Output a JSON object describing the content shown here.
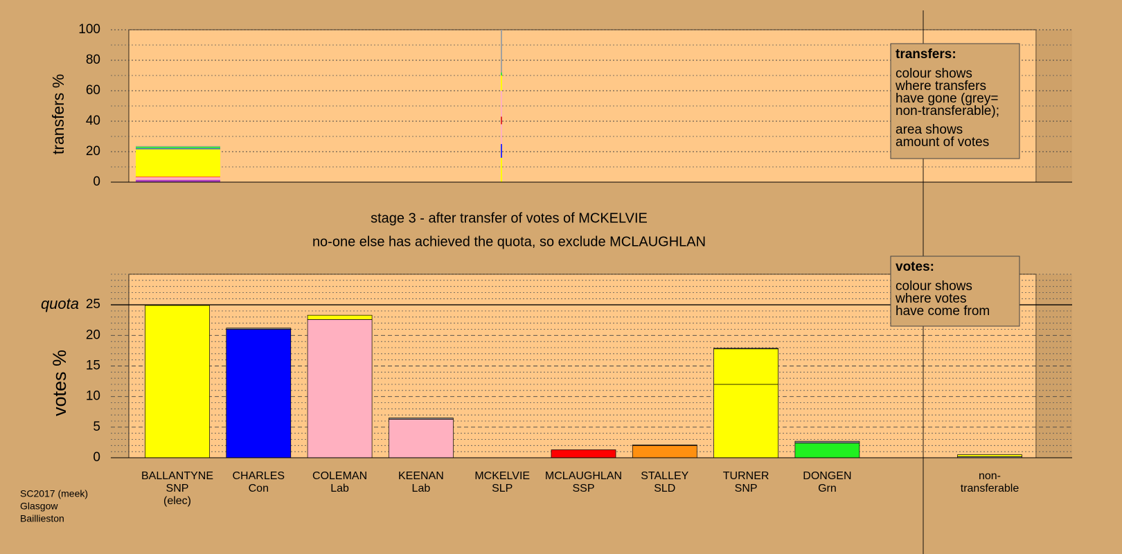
{
  "chart_data": [
    {
      "type": "bar",
      "stacked": true,
      "ylabel": "transfers %",
      "categories": [
        null,
        null
      ],
      "ylim": [
        0,
        100
      ],
      "yticks": [
        0,
        20,
        40,
        60,
        80,
        100
      ],
      "minor_yticks": [
        10,
        30,
        50,
        70,
        90
      ],
      "series": [
        {
          "color": "#b040c0",
          "values": [
            1.5,
            0
          ]
        },
        {
          "color": "#ffb0c0",
          "values": [
            1.8,
            0
          ]
        },
        {
          "color": "#ff0000",
          "values": [
            0.3,
            0
          ]
        },
        {
          "color": "#ffff00",
          "values": [
            18,
            16
          ]
        },
        {
          "color": "#3030ff",
          "values": [
            0.5,
            9
          ]
        },
        {
          "color": "#ffb0c0",
          "values": [
            0,
            13
          ]
        },
        {
          "color": "#e03030",
          "values": [
            0,
            5
          ]
        },
        {
          "color": "#ffb0c0",
          "values": [
            0,
            17
          ]
        },
        {
          "color": "#ffff00",
          "values": [
            0,
            10
          ]
        },
        {
          "color": "#40e040",
          "values": [
            1.2,
            2
          ]
        },
        {
          "color": "#a0a0a0",
          "values": [
            0.4,
            28
          ]
        }
      ]
    },
    {
      "type": "bar",
      "stacked": true,
      "ylabel": "votes %",
      "categories": [
        [
          "BALLANTYNE",
          "SNP",
          "(elec)"
        ],
        [
          "CHARLES",
          "Con"
        ],
        [
          "COLEMAN",
          "Lab"
        ],
        [
          "KEENAN",
          "Lab"
        ],
        [
          "MCKELVIE",
          "SLP"
        ],
        [
          "MCLAUGHLAN",
          "SSP"
        ],
        [
          "STALLEY",
          "SLD"
        ],
        [
          "TURNER",
          "SNP"
        ],
        [
          "DONGEN",
          "Grn"
        ],
        null,
        [
          "non-",
          "transferable"
        ]
      ],
      "ylim": [
        0,
        30
      ],
      "yticks": [
        0,
        5,
        10,
        15,
        20,
        25
      ],
      "minor_yticks": [
        1,
        2,
        3,
        4,
        6,
        7,
        8,
        9,
        11,
        12,
        13,
        14,
        16,
        17,
        18,
        19,
        21,
        22,
        23,
        24,
        26,
        27,
        28,
        29,
        30
      ],
      "quota": 25,
      "quota_label": "quota",
      "series": [
        {
          "colors": [
            "#ffff00",
            "#0000ff",
            "#ffb0c0",
            "#ffb0c0",
            "#808080",
            "#ff0000",
            "#ff9010",
            "#ffff00",
            "#20f020",
            null,
            "#a0a0a0"
          ],
          "values": [
            24.9,
            21.0,
            22.6,
            6.3,
            0,
            1.3,
            2.0,
            12.0,
            2.4,
            null,
            0.2
          ]
        },
        {
          "color": "#ffff00",
          "values": [
            0,
            0,
            0.7,
            0,
            0,
            0,
            0,
            5.8,
            0,
            null,
            0.3
          ]
        },
        {
          "color": "#909090",
          "values": [
            0,
            0.2,
            0,
            0.2,
            0,
            0,
            0.1,
            0.1,
            0.3,
            null,
            0
          ]
        }
      ]
    }
  ],
  "stage_text": [
    "stage 3 - after transfer of votes of MCKELVIE",
    "no-one else has achieved the quota, so exclude MCLAUGHLAN"
  ],
  "notes": [
    {
      "heading": "transfers:",
      "paragraphs": [
        [
          "colour shows",
          "where transfers",
          "have gone (grey=",
          "non-transferable);"
        ],
        [
          "area shows",
          "amount of votes"
        ]
      ]
    },
    {
      "heading": "votes:",
      "paragraphs": [
        [
          "colour shows",
          "where votes",
          "have come from"
        ]
      ]
    }
  ],
  "footer": [
    "SC2017 (meek)",
    "Glasgow",
    "Baillieston"
  ]
}
